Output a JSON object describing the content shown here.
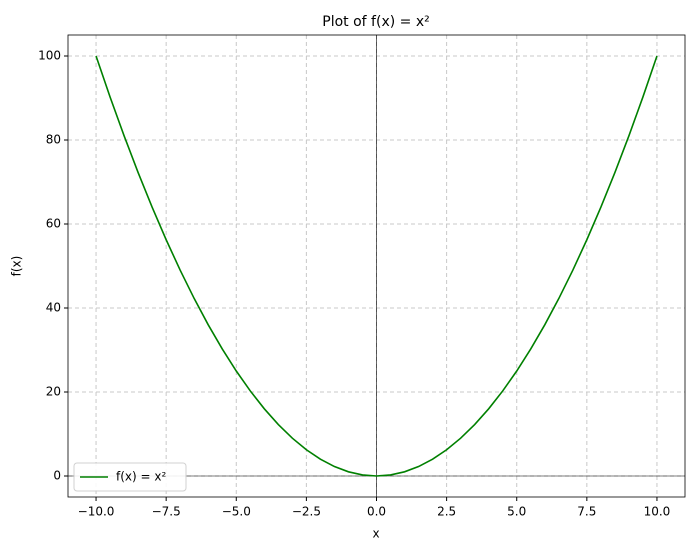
{
  "chart_data": {
    "type": "line",
    "title": "Plot of f(x) = x²",
    "xlabel": "x",
    "ylabel": "f(x)",
    "x": [
      -10,
      -9.5,
      -9,
      -8.5,
      -8,
      -7.5,
      -7,
      -6.5,
      -6,
      -5.5,
      -5,
      -4.5,
      -4,
      -3.5,
      -3,
      -2.5,
      -2,
      -1.5,
      -1,
      -0.5,
      0,
      0.5,
      1,
      1.5,
      2,
      2.5,
      3,
      3.5,
      4,
      4.5,
      5,
      5.5,
      6,
      6.5,
      7,
      7.5,
      8,
      8.5,
      9,
      9.5,
      10
    ],
    "series": [
      {
        "name": "f(x) = x²",
        "color": "#008000",
        "values": [
          100,
          90.25,
          81,
          72.25,
          64,
          56.25,
          49,
          42.25,
          36,
          30.25,
          25,
          20.25,
          16,
          12.25,
          9,
          6.25,
          4,
          2.25,
          1,
          0.25,
          0,
          0.25,
          1,
          2.25,
          4,
          6.25,
          9,
          12.25,
          16,
          20.25,
          25,
          30.25,
          36,
          42.25,
          49,
          56.25,
          64,
          72.25,
          81,
          90.25,
          100
        ]
      }
    ],
    "xlim": [
      -11,
      11
    ],
    "ylim": [
      -5,
      105
    ],
    "xticks": [
      {
        "value": -10,
        "label": "−10.0"
      },
      {
        "value": -7.5,
        "label": "−7.5"
      },
      {
        "value": -5,
        "label": "−5.0"
      },
      {
        "value": -2.5,
        "label": "−2.5"
      },
      {
        "value": 0,
        "label": "0.0"
      },
      {
        "value": 2.5,
        "label": "2.5"
      },
      {
        "value": 5,
        "label": "5.0"
      },
      {
        "value": 7.5,
        "label": "7.5"
      },
      {
        "value": 10,
        "label": "10.0"
      }
    ],
    "yticks": [
      0,
      20,
      40,
      60,
      80,
      100
    ],
    "grid": true,
    "legend": "lower left"
  }
}
